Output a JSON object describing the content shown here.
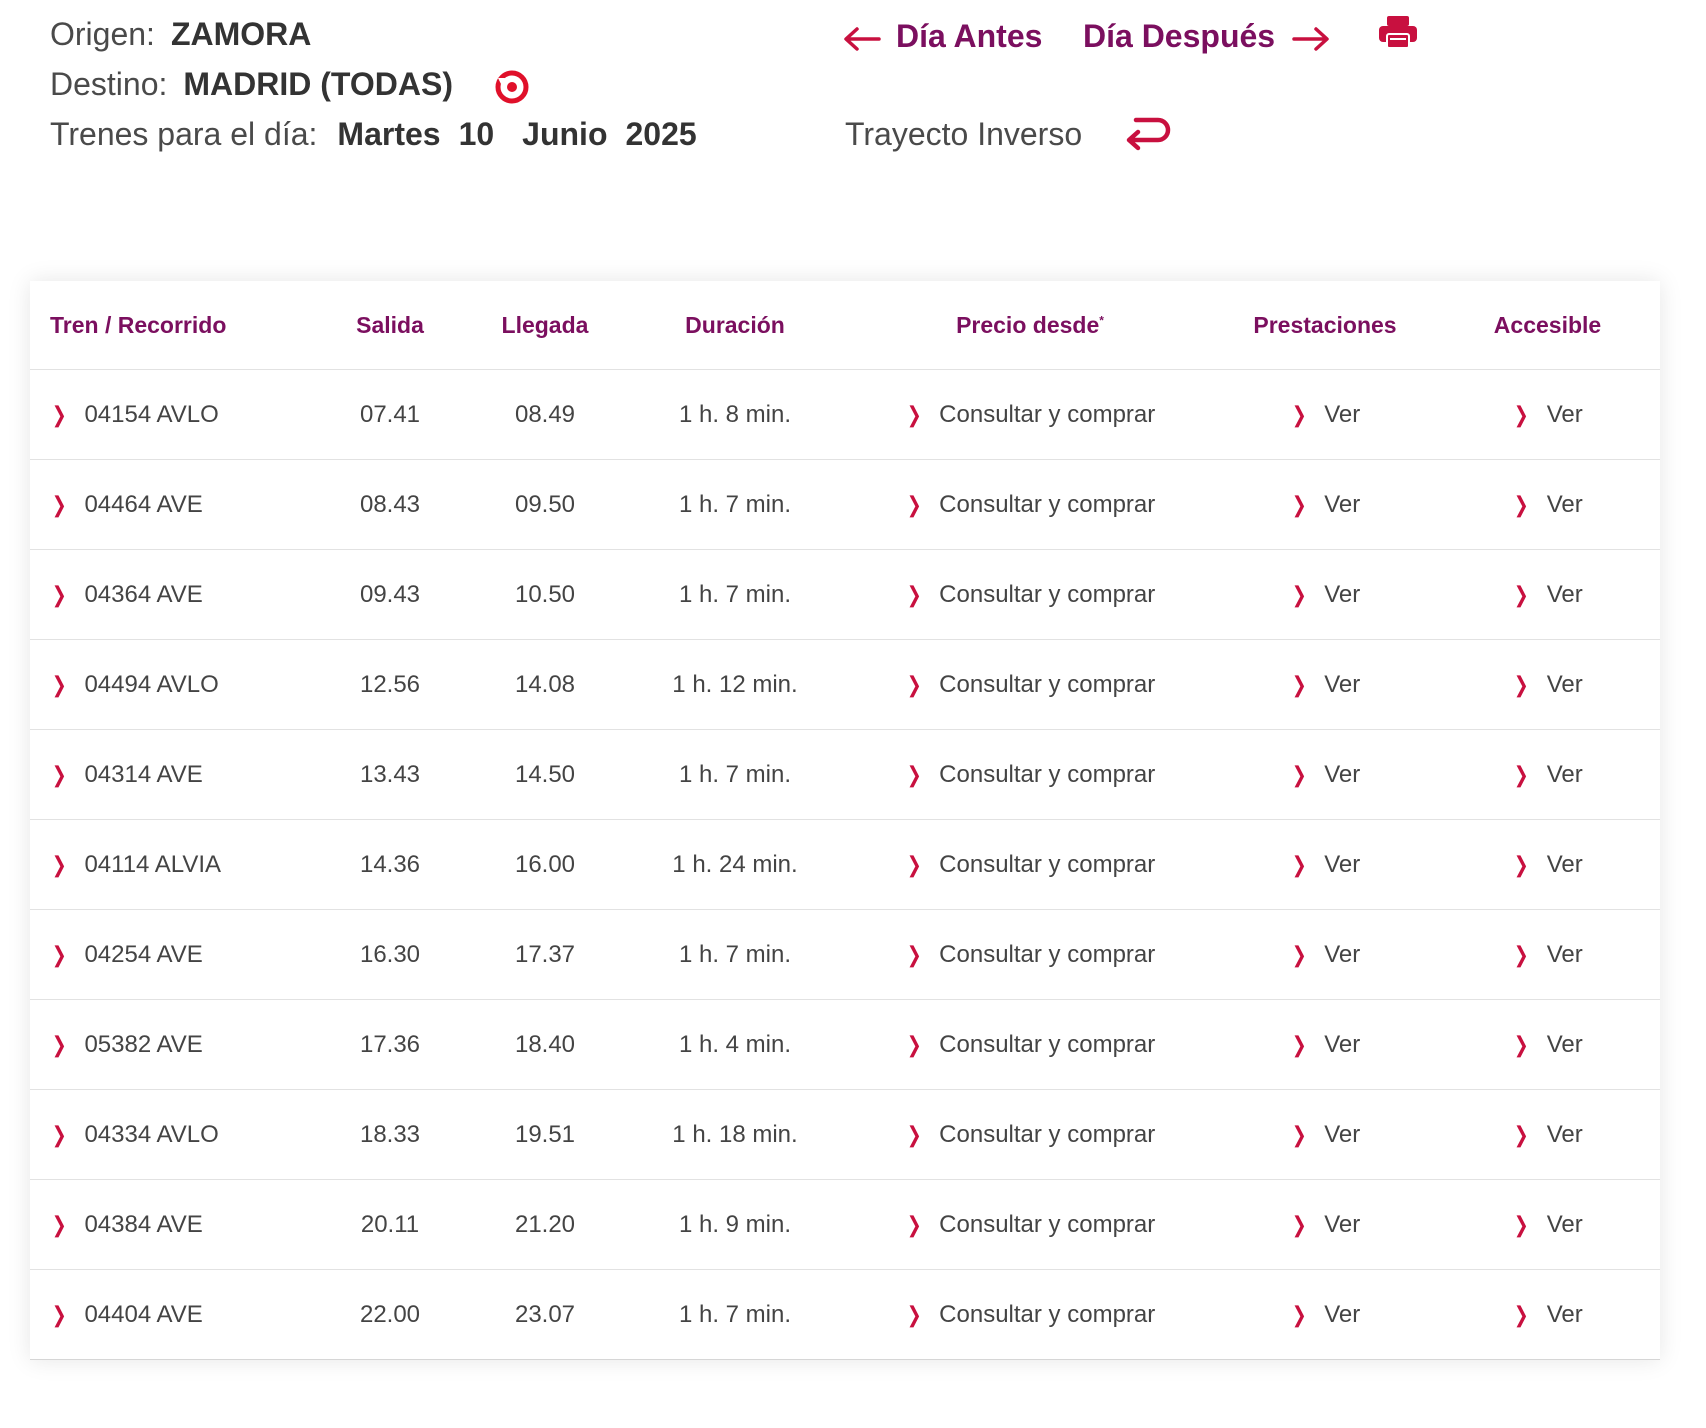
{
  "header": {
    "origen_label": "Origen:",
    "origen_value": "ZAMORA",
    "destino_label": "Destino:",
    "destino_value": "MADRID (TODAS)",
    "fecha_label": "Trenes para el día:",
    "fecha_dia_semana": "Martes",
    "fecha_dia": "10",
    "fecha_mes": "Junio",
    "fecha_anio": "2025",
    "nav_antes": "Día Antes",
    "nav_despues": "Día Después",
    "trayecto_inverso": "Trayecto Inverso"
  },
  "colors": {
    "accent": "#7b0f5f",
    "red": "#c8103f"
  },
  "icons": [
    "arrow-left-icon",
    "arrow-right-icon",
    "print-icon",
    "reload-icon",
    "return-arrow-icon",
    "chevron-right-icon"
  ],
  "table": {
    "headers": {
      "tren": "Tren / Recorrido",
      "salida": "Salida",
      "llegada": "Llegada",
      "duracion": "Duración",
      "precio": "Precio desde",
      "precio_mark": "*",
      "prestaciones": "Prestaciones",
      "accesible": "Accesible"
    },
    "rows": [
      {
        "tren": "04154 AVLO",
        "salida": "07.41",
        "llegada": "08.49",
        "duracion": "1 h. 8 min.",
        "precio": "Consultar y comprar",
        "prestaciones": "Ver",
        "accesible": "Ver"
      },
      {
        "tren": "04464 AVE",
        "salida": "08.43",
        "llegada": "09.50",
        "duracion": "1 h. 7 min.",
        "precio": "Consultar y comprar",
        "prestaciones": "Ver",
        "accesible": "Ver"
      },
      {
        "tren": "04364 AVE",
        "salida": "09.43",
        "llegada": "10.50",
        "duracion": "1 h. 7 min.",
        "precio": "Consultar y comprar",
        "prestaciones": "Ver",
        "accesible": "Ver"
      },
      {
        "tren": "04494 AVLO",
        "salida": "12.56",
        "llegada": "14.08",
        "duracion": "1 h. 12 min.",
        "precio": "Consultar y comprar",
        "prestaciones": "Ver",
        "accesible": "Ver"
      },
      {
        "tren": "04314 AVE",
        "salida": "13.43",
        "llegada": "14.50",
        "duracion": "1 h. 7 min.",
        "precio": "Consultar y comprar",
        "prestaciones": "Ver",
        "accesible": "Ver"
      },
      {
        "tren": "04114 ALVIA",
        "salida": "14.36",
        "llegada": "16.00",
        "duracion": "1 h. 24 min.",
        "precio": "Consultar y comprar",
        "prestaciones": "Ver",
        "accesible": "Ver"
      },
      {
        "tren": "04254 AVE",
        "salida": "16.30",
        "llegada": "17.37",
        "duracion": "1 h. 7 min.",
        "precio": "Consultar y comprar",
        "prestaciones": "Ver",
        "accesible": "Ver"
      },
      {
        "tren": "05382 AVE",
        "salida": "17.36",
        "llegada": "18.40",
        "duracion": "1 h. 4 min.",
        "precio": "Consultar y comprar",
        "prestaciones": "Ver",
        "accesible": "Ver"
      },
      {
        "tren": "04334 AVLO",
        "salida": "18.33",
        "llegada": "19.51",
        "duracion": "1 h. 18 min.",
        "precio": "Consultar y comprar",
        "prestaciones": "Ver",
        "accesible": "Ver"
      },
      {
        "tren": "04384 AVE",
        "salida": "20.11",
        "llegada": "21.20",
        "duracion": "1 h. 9 min.",
        "precio": "Consultar y comprar",
        "prestaciones": "Ver",
        "accesible": "Ver"
      },
      {
        "tren": "04404 AVE",
        "salida": "22.00",
        "llegada": "23.07",
        "duracion": "1 h. 7 min.",
        "precio": "Consultar y comprar",
        "prestaciones": "Ver",
        "accesible": "Ver"
      }
    ]
  }
}
